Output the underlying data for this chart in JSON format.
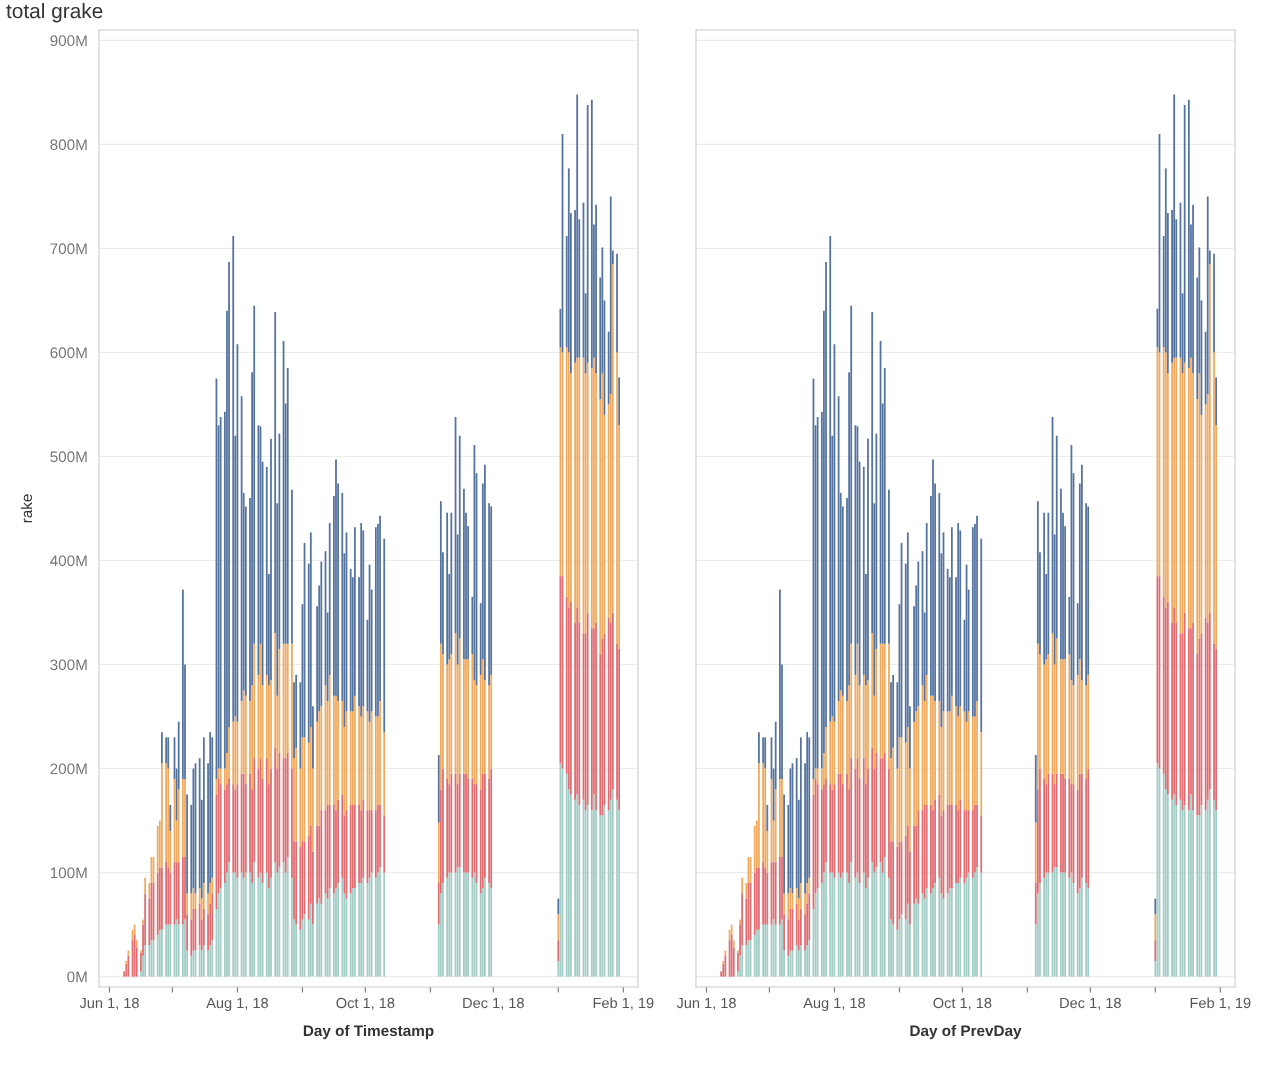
{
  "chart_data": [
    {
      "type": "bar",
      "stacked": true,
      "title": "total grake",
      "ylabel": "rake",
      "xlabel": "Day of Timestamp",
      "grid": "y",
      "xlim": [
        "2018-05-27",
        "2019-02-08"
      ],
      "ylim": [
        -10,
        910
      ],
      "xticks": [
        {
          "value": "2018-06-01",
          "label": "Jun 1, 18"
        },
        {
          "value": "2018-07-01",
          "label": null
        },
        {
          "value": "2018-08-01",
          "label": "Aug 1, 18"
        },
        {
          "value": "2018-09-01",
          "label": null
        },
        {
          "value": "2018-10-01",
          "label": "Oct 1, 18"
        },
        {
          "value": "2018-11-01",
          "label": null
        },
        {
          "value": "2018-12-01",
          "label": "Dec 1, 18"
        },
        {
          "value": "2019-01-01",
          "label": null
        },
        {
          "value": "2019-02-01",
          "label": "Feb 1, 19"
        }
      ],
      "yticks": [
        {
          "value": 0,
          "label": "0M"
        },
        {
          "value": 100,
          "label": "100M"
        },
        {
          "value": 200,
          "label": "200M"
        },
        {
          "value": 300,
          "label": "300M"
        },
        {
          "value": 400,
          "label": "400M"
        },
        {
          "value": 500,
          "label": "500M"
        },
        {
          "value": 600,
          "label": "600M"
        },
        {
          "value": 700,
          "label": "700M"
        },
        {
          "value": 800,
          "label": "800M"
        },
        {
          "value": 900,
          "label": "900M"
        }
      ],
      "x": [
        "2018-06-08",
        "2018-06-09",
        "2018-06-10",
        "2018-06-12",
        "2018-06-13",
        "2018-06-14",
        "2018-06-16",
        "2018-06-17",
        "2018-06-18",
        "2018-06-20",
        "2018-06-21",
        "2018-06-22",
        "2018-06-24",
        "2018-06-25",
        "2018-06-26",
        "2018-06-28",
        "2018-06-29",
        "2018-06-30",
        "2018-07-02",
        "2018-07-03",
        "2018-07-04",
        "2018-07-06",
        "2018-07-07",
        "2018-07-08",
        "2018-07-10",
        "2018-07-11",
        "2018-07-12",
        "2018-07-14",
        "2018-07-15",
        "2018-07-16",
        "2018-07-18",
        "2018-07-19",
        "2018-07-20",
        "2018-07-22",
        "2018-07-23",
        "2018-07-24",
        "2018-07-26",
        "2018-07-27",
        "2018-07-28",
        "2018-07-30",
        "2018-07-31",
        "2018-08-01",
        "2018-08-03",
        "2018-08-04",
        "2018-08-05",
        "2018-08-07",
        "2018-08-08",
        "2018-08-09",
        "2018-08-11",
        "2018-08-12",
        "2018-08-13",
        "2018-08-15",
        "2018-08-16",
        "2018-08-17",
        "2018-08-19",
        "2018-08-20",
        "2018-08-21",
        "2018-08-23",
        "2018-08-24",
        "2018-08-25",
        "2018-08-27",
        "2018-08-28",
        "2018-08-29",
        "2018-08-31",
        "2018-09-01",
        "2018-09-02",
        "2018-09-04",
        "2018-09-05",
        "2018-09-06",
        "2018-09-08",
        "2018-09-09",
        "2018-09-10",
        "2018-09-12",
        "2018-09-13",
        "2018-09-14",
        "2018-09-16",
        "2018-09-17",
        "2018-09-18",
        "2018-09-20",
        "2018-09-21",
        "2018-09-22",
        "2018-09-24",
        "2018-09-25",
        "2018-09-26",
        "2018-09-28",
        "2018-09-29",
        "2018-09-30",
        "2018-10-02",
        "2018-10-03",
        "2018-10-04",
        "2018-10-06",
        "2018-10-07",
        "2018-10-08",
        "2018-10-10",
        "2018-11-05",
        "2018-11-06",
        "2018-11-07",
        "2018-11-09",
        "2018-11-10",
        "2018-11-11",
        "2018-11-13",
        "2018-11-14",
        "2018-11-15",
        "2018-11-17",
        "2018-11-18",
        "2018-11-19",
        "2018-11-21",
        "2018-11-22",
        "2018-11-23",
        "2018-11-25",
        "2018-11-26",
        "2018-11-27",
        "2018-11-29",
        "2018-11-30",
        "2019-01-01",
        "2019-01-02",
        "2019-01-03",
        "2019-01-05",
        "2019-01-06",
        "2019-01-07",
        "2019-01-09",
        "2019-01-10",
        "2019-01-11",
        "2019-01-13",
        "2019-01-14",
        "2019-01-15",
        "2019-01-17",
        "2019-01-18",
        "2019-01-19",
        "2019-01-21",
        "2019-01-22",
        "2019-01-23",
        "2019-01-25",
        "2019-01-26",
        "2019-01-27",
        "2019-01-29",
        "2019-01-30"
      ],
      "series": [
        {
          "color": "#a3ccc6",
          "values": [
            0,
            0,
            0,
            0,
            0,
            0,
            5,
            20,
            30,
            30,
            35,
            35,
            40,
            45,
            45,
            50,
            50,
            50,
            50,
            55,
            50,
            50,
            55,
            25,
            20,
            25,
            25,
            30,
            25,
            30,
            25,
            30,
            35,
            65,
            80,
            85,
            90,
            100,
            110,
            100,
            100,
            95,
            100,
            95,
            100,
            100,
            90,
            110,
            95,
            100,
            90,
            100,
            85,
            95,
            110,
            100,
            105,
            110,
            100,
            115,
            95,
            55,
            50,
            45,
            55,
            60,
            55,
            70,
            50,
            70,
            75,
            70,
            80,
            75,
            85,
            80,
            85,
            90,
            95,
            80,
            75,
            80,
            85,
            85,
            90,
            90,
            95,
            90,
            95,
            100,
            95,
            100,
            105,
            100,
            50,
            80,
            90,
            95,
            100,
            100,
            100,
            105,
            105,
            100,
            100,
            100,
            95,
            100,
            90,
            80,
            85,
            95,
            90,
            85,
            15,
            205,
            200,
            195,
            180,
            175,
            170,
            175,
            165,
            170,
            160,
            165,
            160,
            175,
            160,
            155,
            155,
            165,
            160,
            170,
            180,
            170,
            160
          ]
        },
        {
          "color": "#e06c72",
          "values": [
            5,
            12,
            20,
            35,
            40,
            28,
            18,
            30,
            50,
            45,
            55,
            55,
            60,
            60,
            60,
            60,
            55,
            50,
            60,
            55,
            60,
            65,
            60,
            35,
            35,
            40,
            40,
            40,
            30,
            35,
            35,
            40,
            45,
            110,
            110,
            100,
            90,
            85,
            80,
            85,
            80,
            90,
            95,
            100,
            85,
            95,
            90,
            100,
            105,
            110,
            100,
            110,
            100,
            105,
            110,
            100,
            110,
            100,
            110,
            100,
            105,
            75,
            80,
            80,
            75,
            70,
            80,
            75,
            70,
            75,
            70,
            90,
            80,
            90,
            80,
            85,
            75,
            80,
            80,
            75,
            85,
            85,
            80,
            80,
            75,
            70,
            75,
            70,
            65,
            60,
            65,
            65,
            60,
            55,
            40,
            100,
            110,
            95,
            85,
            95,
            95,
            80,
            90,
            95,
            95,
            90,
            95,
            85,
            95,
            100,
            110,
            100,
            100,
            115,
            20,
            180,
            185,
            170,
            175,
            185,
            170,
            180,
            175,
            160,
            170,
            185,
            175,
            160,
            180,
            155,
            170,
            165,
            185,
            170,
            170,
            150,
            155
          ]
        },
        {
          "color": "#f0aa60",
          "values": [
            0,
            3,
            5,
            10,
            10,
            7,
            2,
            5,
            15,
            15,
            25,
            25,
            45,
            45,
            100,
            95,
            95,
            40,
            80,
            40,
            70,
            75,
            75,
            20,
            25,
            20,
            15,
            15,
            20,
            25,
            20,
            20,
            15,
            15,
            10,
            15,
            20,
            30,
            50,
            60,
            70,
            60,
            70,
            80,
            85,
            70,
            100,
            110,
            90,
            110,
            90,
            80,
            95,
            85,
            110,
            70,
            100,
            110,
            110,
            105,
            120,
            80,
            90,
            75,
            100,
            100,
            90,
            95,
            80,
            100,
            110,
            100,
            120,
            100,
            125,
            105,
            110,
            95,
            90,
            85,
            95,
            90,
            90,
            105,
            95,
            90,
            90,
            95,
            85,
            95,
            90,
            85,
            100,
            80,
            58,
            140,
            110,
            110,
            120,
            115,
            135,
            115,
            130,
            110,
            110,
            115,
            120,
            100,
            95,
            110,
            110,
            90,
            90,
            90,
            25,
            220,
            215,
            240,
            245,
            220,
            250,
            240,
            255,
            265,
            250,
            240,
            250,
            260,
            240,
            245,
            255,
            210,
            205,
            220,
            335,
            280,
            215
          ]
        },
        {
          "color": "#55739f",
          "values": [
            0,
            0,
            0,
            0,
            0,
            0,
            0,
            0,
            0,
            0,
            0,
            0,
            0,
            0,
            30,
            25,
            30,
            25,
            40,
            50,
            65,
            182,
            110,
            95,
            85,
            115,
            125,
            125,
            95,
            140,
            125,
            145,
            135,
            385,
            330,
            338,
            343,
            425,
            447,
            467,
            270,
            363,
            293,
            190,
            182,
            195,
            301,
            325,
            240,
            209,
            215,
            200,
            107,
            232,
            309,
            185,
            207,
            291,
            231,
            265,
            148,
            73,
            70,
            83,
            128,
            187,
            172,
            187,
            60,
            111,
            121,
            139,
            129,
            85,
            146,
            192,
            227,
            209,
            200,
            167,
            172,
            137,
            129,
            162,
            124,
            186,
            169,
            88,
            151,
            117,
            182,
            185,
            178,
            186,
            65,
            137,
            98,
            146,
            82,
            136,
            208,
            125,
            195,
            164,
            141,
            128,
            55,
            226,
            204,
            69,
            169,
            207,
            175,
            162,
            15,
            37,
            210,
            107,
            177,
            154,
            147,
            253,
            133,
            149,
            77,
            248,
            258,
            128,
            162,
            117,
            121,
            110,
            70,
            190,
            13,
            95,
            46
          ]
        }
      ]
    },
    {
      "type": "bar",
      "stacked": true,
      "xlabel": "Day of PrevDay",
      "grid": "y",
      "tick_labels": "x",
      "xlim": [
        "2018-05-27",
        "2019-02-08"
      ],
      "ylim": [
        -10,
        910
      ],
      "xticks": [
        {
          "value": "2018-06-01",
          "label": "Jun 1, 18"
        },
        {
          "value": "2018-07-01",
          "label": null
        },
        {
          "value": "2018-08-01",
          "label": "Aug 1, 18"
        },
        {
          "value": "2018-09-01",
          "label": null
        },
        {
          "value": "2018-10-01",
          "label": "Oct 1, 18"
        },
        {
          "value": "2018-11-01",
          "label": null
        },
        {
          "value": "2018-12-01",
          "label": "Dec 1, 18"
        },
        {
          "value": "2019-01-01",
          "label": null
        },
        {
          "value": "2019-02-01",
          "label": "Feb 1, 19"
        }
      ],
      "yticks": [
        0,
        100,
        200,
        300,
        400,
        500,
        600,
        700,
        800,
        900
      ],
      "x": [
        "2018-06-08",
        "2018-06-09",
        "2018-06-10",
        "2018-06-12",
        "2018-06-13",
        "2018-06-14",
        "2018-06-16",
        "2018-06-17",
        "2018-06-18",
        "2018-06-20",
        "2018-06-21",
        "2018-06-22",
        "2018-06-24",
        "2018-06-25",
        "2018-06-26",
        "2018-06-28",
        "2018-06-29",
        "2018-06-30",
        "2018-07-02",
        "2018-07-03",
        "2018-07-04",
        "2018-07-06",
        "2018-07-07",
        "2018-07-08",
        "2018-07-10",
        "2018-07-11",
        "2018-07-12",
        "2018-07-14",
        "2018-07-15",
        "2018-07-16",
        "2018-07-18",
        "2018-07-19",
        "2018-07-20",
        "2018-07-22",
        "2018-07-23",
        "2018-07-24",
        "2018-07-26",
        "2018-07-27",
        "2018-07-28",
        "2018-07-30",
        "2018-07-31",
        "2018-08-01",
        "2018-08-03",
        "2018-08-04",
        "2018-08-05",
        "2018-08-07",
        "2018-08-08",
        "2018-08-09",
        "2018-08-11",
        "2018-08-12",
        "2018-08-13",
        "2018-08-15",
        "2018-08-16",
        "2018-08-17",
        "2018-08-19",
        "2018-08-20",
        "2018-08-21",
        "2018-08-23",
        "2018-08-24",
        "2018-08-25",
        "2018-08-27",
        "2018-08-28",
        "2018-08-29",
        "2018-08-31",
        "2018-09-01",
        "2018-09-02",
        "2018-09-04",
        "2018-09-05",
        "2018-09-06",
        "2018-09-08",
        "2018-09-09",
        "2018-09-10",
        "2018-09-12",
        "2018-09-13",
        "2018-09-14",
        "2018-09-16",
        "2018-09-17",
        "2018-09-18",
        "2018-09-20",
        "2018-09-21",
        "2018-09-22",
        "2018-09-24",
        "2018-09-25",
        "2018-09-26",
        "2018-09-28",
        "2018-09-29",
        "2018-09-30",
        "2018-10-02",
        "2018-10-03",
        "2018-10-04",
        "2018-10-06",
        "2018-10-07",
        "2018-10-08",
        "2018-10-10",
        "2018-11-05",
        "2018-11-06",
        "2018-11-07",
        "2018-11-09",
        "2018-11-10",
        "2018-11-11",
        "2018-11-13",
        "2018-11-14",
        "2018-11-15",
        "2018-11-17",
        "2018-11-18",
        "2018-11-19",
        "2018-11-21",
        "2018-11-22",
        "2018-11-23",
        "2018-11-25",
        "2018-11-26",
        "2018-11-27",
        "2018-11-29",
        "2018-11-30",
        "2019-01-01",
        "2019-01-02",
        "2019-01-03",
        "2019-01-05",
        "2019-01-06",
        "2019-01-07",
        "2019-01-09",
        "2019-01-10",
        "2019-01-11",
        "2019-01-13",
        "2019-01-14",
        "2019-01-15",
        "2019-01-17",
        "2019-01-18",
        "2019-01-19",
        "2019-01-21",
        "2019-01-22",
        "2019-01-23",
        "2019-01-25",
        "2019-01-26",
        "2019-01-27",
        "2019-01-29",
        "2019-01-30"
      ],
      "series": [
        {
          "color": "#a3ccc6",
          "values": [
            0,
            0,
            0,
            0,
            0,
            0,
            5,
            20,
            30,
            30,
            35,
            35,
            40,
            45,
            45,
            50,
            50,
            50,
            50,
            55,
            50,
            50,
            55,
            25,
            20,
            25,
            25,
            30,
            25,
            30,
            25,
            30,
            35,
            65,
            80,
            85,
            90,
            100,
            110,
            100,
            100,
            95,
            100,
            95,
            100,
            100,
            90,
            110,
            95,
            100,
            90,
            100,
            85,
            95,
            110,
            100,
            105,
            110,
            100,
            115,
            95,
            55,
            50,
            45,
            55,
            60,
            55,
            70,
            50,
            70,
            75,
            70,
            80,
            75,
            85,
            80,
            85,
            90,
            95,
            80,
            75,
            80,
            85,
            85,
            90,
            90,
            95,
            90,
            95,
            100,
            95,
            100,
            105,
            100,
            50,
            80,
            90,
            95,
            100,
            100,
            100,
            105,
            105,
            100,
            100,
            100,
            95,
            100,
            90,
            80,
            85,
            95,
            90,
            85,
            15,
            205,
            200,
            195,
            180,
            175,
            170,
            175,
            165,
            170,
            160,
            165,
            160,
            175,
            160,
            155,
            155,
            165,
            160,
            170,
            180,
            170,
            160
          ]
        },
        {
          "color": "#e06c72",
          "values": [
            5,
            12,
            20,
            35,
            40,
            28,
            18,
            30,
            50,
            45,
            55,
            55,
            60,
            60,
            60,
            60,
            55,
            50,
            60,
            55,
            60,
            65,
            60,
            35,
            35,
            40,
            40,
            40,
            30,
            35,
            35,
            40,
            45,
            110,
            110,
            100,
            90,
            85,
            80,
            85,
            80,
            90,
            95,
            100,
            85,
            95,
            90,
            100,
            105,
            110,
            100,
            110,
            100,
            105,
            110,
            100,
            110,
            100,
            110,
            100,
            105,
            75,
            80,
            80,
            75,
            70,
            80,
            75,
            70,
            75,
            70,
            90,
            80,
            90,
            80,
            85,
            75,
            80,
            80,
            75,
            85,
            85,
            80,
            80,
            75,
            70,
            75,
            70,
            65,
            60,
            65,
            65,
            60,
            55,
            40,
            100,
            110,
            95,
            85,
            95,
            95,
            80,
            90,
            95,
            95,
            90,
            95,
            85,
            95,
            100,
            110,
            100,
            100,
            115,
            20,
            180,
            185,
            170,
            175,
            185,
            170,
            180,
            175,
            160,
            170,
            185,
            175,
            160,
            180,
            155,
            170,
            165,
            185,
            170,
            170,
            150,
            155
          ]
        },
        {
          "color": "#f0aa60",
          "values": [
            0,
            3,
            5,
            10,
            10,
            7,
            2,
            5,
            15,
            15,
            25,
            25,
            45,
            45,
            100,
            95,
            95,
            40,
            80,
            40,
            70,
            75,
            75,
            20,
            25,
            20,
            15,
            15,
            20,
            25,
            20,
            20,
            15,
            15,
            10,
            15,
            20,
            30,
            50,
            60,
            70,
            60,
            70,
            80,
            85,
            70,
            100,
            110,
            90,
            110,
            90,
            80,
            95,
            85,
            110,
            70,
            100,
            110,
            110,
            105,
            120,
            80,
            90,
            75,
            100,
            100,
            90,
            95,
            80,
            100,
            110,
            100,
            120,
            100,
            125,
            105,
            110,
            95,
            90,
            85,
            95,
            90,
            90,
            105,
            95,
            90,
            90,
            95,
            85,
            95,
            90,
            85,
            100,
            80,
            58,
            140,
            110,
            110,
            120,
            115,
            135,
            115,
            130,
            110,
            110,
            115,
            120,
            100,
            95,
            110,
            110,
            90,
            90,
            90,
            25,
            220,
            215,
            240,
            245,
            220,
            250,
            240,
            255,
            265,
            250,
            240,
            250,
            260,
            240,
            245,
            255,
            210,
            205,
            220,
            335,
            280,
            215
          ]
        },
        {
          "color": "#55739f",
          "values": [
            0,
            0,
            0,
            0,
            0,
            0,
            0,
            0,
            0,
            0,
            0,
            0,
            0,
            0,
            30,
            25,
            30,
            25,
            40,
            50,
            65,
            182,
            110,
            95,
            85,
            115,
            125,
            125,
            95,
            140,
            125,
            145,
            135,
            385,
            330,
            338,
            343,
            425,
            447,
            467,
            270,
            363,
            293,
            190,
            182,
            195,
            301,
            325,
            240,
            209,
            215,
            200,
            107,
            232,
            309,
            185,
            207,
            291,
            231,
            265,
            148,
            73,
            70,
            83,
            128,
            187,
            172,
            187,
            60,
            111,
            121,
            139,
            129,
            85,
            146,
            192,
            227,
            209,
            200,
            167,
            172,
            137,
            129,
            162,
            124,
            186,
            169,
            88,
            151,
            117,
            182,
            185,
            178,
            186,
            65,
            137,
            98,
            146,
            82,
            136,
            208,
            125,
            195,
            164,
            141,
            128,
            55,
            226,
            204,
            69,
            169,
            207,
            175,
            162,
            15,
            37,
            210,
            107,
            177,
            154,
            147,
            253,
            133,
            149,
            77,
            248,
            258,
            128,
            162,
            117,
            121,
            110,
            70,
            190,
            13,
            95,
            46
          ]
        }
      ]
    }
  ]
}
